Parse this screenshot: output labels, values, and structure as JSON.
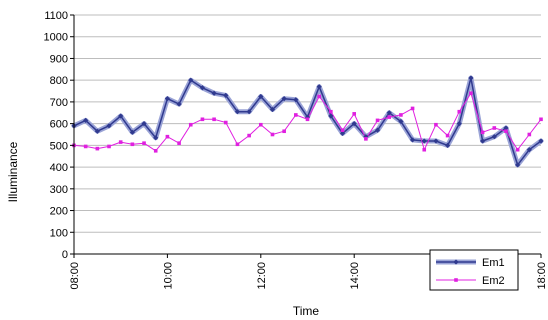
{
  "chart_data": {
    "type": "line",
    "xlabel": "Time",
    "ylabel": "Illuminance",
    "ylim": [
      0,
      1100
    ],
    "y_ticks": [
      0,
      100,
      200,
      300,
      400,
      500,
      600,
      700,
      800,
      900,
      1000,
      1100
    ],
    "x_range": [
      "08:00",
      "18:00"
    ],
    "x_tick_labels": [
      "08:00",
      "10:00",
      "12:00",
      "14:00",
      "16:00",
      "18:00"
    ],
    "grid": "horizontal",
    "legend_position": "right",
    "series": [
      {
        "name": "Em1",
        "color": "#303a8f",
        "band_color": "#9aa3d6",
        "marker": "diamond",
        "points": [
          [
            "08:00",
            590
          ],
          [
            "08:15",
            615
          ],
          [
            "08:30",
            565
          ],
          [
            "08:45",
            590
          ],
          [
            "09:00",
            635
          ],
          [
            "09:15",
            560
          ],
          [
            "09:30",
            600
          ],
          [
            "09:45",
            535
          ],
          [
            "10:00",
            715
          ],
          [
            "10:15",
            690
          ],
          [
            "10:30",
            800
          ],
          [
            "10:45",
            765
          ],
          [
            "11:00",
            740
          ],
          [
            "11:15",
            730
          ],
          [
            "11:30",
            655
          ],
          [
            "11:45",
            655
          ],
          [
            "12:00",
            725
          ],
          [
            "12:15",
            665
          ],
          [
            "12:30",
            715
          ],
          [
            "12:45",
            710
          ],
          [
            "13:00",
            630
          ],
          [
            "13:15",
            770
          ],
          [
            "13:30",
            635
          ],
          [
            "13:45",
            555
          ],
          [
            "14:00",
            600
          ],
          [
            "14:15",
            540
          ],
          [
            "14:30",
            570
          ],
          [
            "14:45",
            650
          ],
          [
            "15:00",
            610
          ],
          [
            "15:15",
            525
          ],
          [
            "15:30",
            520
          ],
          [
            "15:45",
            520
          ],
          [
            "16:00",
            500
          ],
          [
            "16:15",
            600
          ],
          [
            "16:30",
            810
          ],
          [
            "16:45",
            520
          ],
          [
            "17:00",
            540
          ],
          [
            "17:15",
            580
          ],
          [
            "17:30",
            410
          ],
          [
            "17:45",
            480
          ],
          [
            "18:00",
            520
          ]
        ]
      },
      {
        "name": "Em2",
        "color": "#e020e0",
        "marker": "square",
        "points": [
          [
            "08:00",
            500
          ],
          [
            "08:15",
            495
          ],
          [
            "08:30",
            485
          ],
          [
            "08:45",
            495
          ],
          [
            "09:00",
            515
          ],
          [
            "09:15",
            505
          ],
          [
            "09:30",
            510
          ],
          [
            "09:45",
            475
          ],
          [
            "10:00",
            540
          ],
          [
            "10:15",
            510
          ],
          [
            "10:30",
            595
          ],
          [
            "10:45",
            620
          ],
          [
            "11:00",
            620
          ],
          [
            "11:15",
            605
          ],
          [
            "11:30",
            505
          ],
          [
            "11:45",
            545
          ],
          [
            "12:00",
            595
          ],
          [
            "12:15",
            550
          ],
          [
            "12:30",
            565
          ],
          [
            "12:45",
            640
          ],
          [
            "13:00",
            620
          ],
          [
            "13:15",
            725
          ],
          [
            "13:30",
            655
          ],
          [
            "13:45",
            570
          ],
          [
            "14:00",
            645
          ],
          [
            "14:15",
            530
          ],
          [
            "14:30",
            615
          ],
          [
            "14:45",
            630
          ],
          [
            "15:00",
            640
          ],
          [
            "15:15",
            670
          ],
          [
            "15:30",
            480
          ],
          [
            "15:45",
            595
          ],
          [
            "16:00",
            545
          ],
          [
            "16:15",
            655
          ],
          [
            "16:30",
            740
          ],
          [
            "16:45",
            560
          ],
          [
            "17:00",
            580
          ],
          [
            "17:15",
            565
          ],
          [
            "17:30",
            480
          ],
          [
            "17:45",
            550
          ],
          [
            "18:00",
            620
          ]
        ]
      }
    ]
  }
}
